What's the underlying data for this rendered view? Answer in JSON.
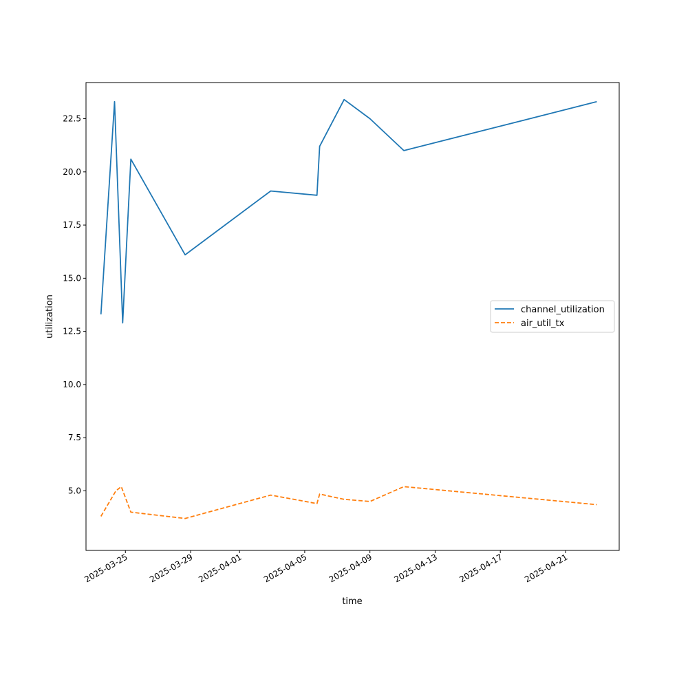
{
  "chart_data": {
    "type": "line",
    "xlabel": "time",
    "ylabel": "utilization",
    "x_ticks": [
      "2025-03-25",
      "2025-03-29",
      "2025-04-01",
      "2025-04-05",
      "2025-04-09",
      "2025-04-13",
      "2025-04-17",
      "2025-04-21"
    ],
    "y_ticks": [
      "5.0",
      "7.5",
      "10.0",
      "12.5",
      "15.0",
      "17.5",
      "20.0",
      "22.5"
    ],
    "xlim": [
      "2025-03-22T14:00",
      "2025-04-24T07:00"
    ],
    "ylim": [
      2.2,
      24.2
    ],
    "legend_position": "center-right",
    "grid": false,
    "series": [
      {
        "name": "channel_utilization",
        "color": "#1f77b4",
        "style": "solid",
        "points": [
          {
            "x": "2025-03-23T12:00",
            "y": 13.3
          },
          {
            "x": "2025-03-24T08:00",
            "y": 23.3
          },
          {
            "x": "2025-03-24T20:00",
            "y": 12.9
          },
          {
            "x": "2025-03-25T08:00",
            "y": 20.6
          },
          {
            "x": "2025-03-28T16:00",
            "y": 16.1
          },
          {
            "x": "2025-04-02T22:00",
            "y": 19.1
          },
          {
            "x": "2025-04-05T18:00",
            "y": 18.9
          },
          {
            "x": "2025-04-05T22:00",
            "y": 21.2
          },
          {
            "x": "2025-04-07T10:00",
            "y": 23.4
          },
          {
            "x": "2025-04-09T00:00",
            "y": 22.5
          },
          {
            "x": "2025-04-11T02:00",
            "y": 21.0
          },
          {
            "x": "2025-04-22T22:00",
            "y": 23.3
          }
        ]
      },
      {
        "name": "air_util_tx",
        "color": "#ff7f0e",
        "style": "dashed",
        "points": [
          {
            "x": "2025-03-23T12:00",
            "y": 3.8
          },
          {
            "x": "2025-03-24T10:00",
            "y": 5.0
          },
          {
            "x": "2025-03-24T18:00",
            "y": 5.2
          },
          {
            "x": "2025-03-25T08:00",
            "y": 4.0
          },
          {
            "x": "2025-03-28T16:00",
            "y": 3.7
          },
          {
            "x": "2025-04-02T22:00",
            "y": 4.8
          },
          {
            "x": "2025-04-05T18:00",
            "y": 4.4
          },
          {
            "x": "2025-04-05T22:00",
            "y": 4.85
          },
          {
            "x": "2025-04-07T10:00",
            "y": 4.6
          },
          {
            "x": "2025-04-09T00:00",
            "y": 4.5
          },
          {
            "x": "2025-04-11T02:00",
            "y": 5.2
          },
          {
            "x": "2025-04-22T22:00",
            "y": 4.35
          }
        ]
      }
    ]
  }
}
